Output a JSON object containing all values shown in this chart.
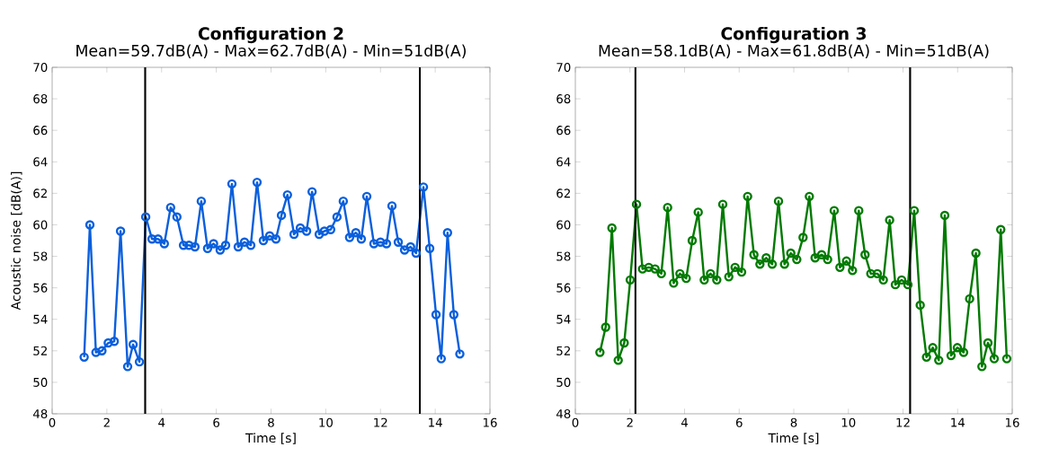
{
  "chart_data": [
    {
      "type": "line",
      "title": "Configuration 2",
      "subtitle": "Mean=59.7dB(A) - Max=62.7dB(A) - Min=51dB(A)",
      "xlabel": "Time [s]",
      "ylabel": "Acoustic noise [dB(A)]",
      "x": [
        1.17,
        1.38,
        1.6,
        1.82,
        2.05,
        2.27,
        2.5,
        2.76,
        2.96,
        3.19,
        3.42,
        3.65,
        3.87,
        4.1,
        4.33,
        4.56,
        4.8,
        5.0,
        5.22,
        5.45,
        5.68,
        5.9,
        6.14,
        6.34,
        6.57,
        6.8,
        7.03,
        7.26,
        7.49,
        7.72,
        7.95,
        8.18,
        8.38,
        8.6,
        8.84,
        9.07,
        9.3,
        9.5,
        9.76,
        9.95,
        10.18,
        10.41,
        10.64,
        10.87,
        11.1,
        11.3,
        11.5,
        11.76,
        12.0,
        12.22,
        12.42,
        12.65,
        12.88,
        13.1,
        13.3,
        13.57,
        13.8,
        14.03,
        14.22,
        14.45,
        14.68,
        14.9
      ],
      "series": [
        {
          "color": "#0a5fdc",
          "values": [
            51.6,
            60.0,
            51.9,
            52.0,
            52.5,
            52.6,
            59.6,
            51.0,
            52.4,
            51.3,
            60.5,
            59.1,
            59.1,
            58.8,
            61.1,
            60.5,
            58.7,
            58.7,
            58.6,
            61.5,
            58.5,
            58.8,
            58.4,
            58.7,
            62.6,
            58.6,
            58.9,
            58.7,
            62.7,
            59.0,
            59.3,
            59.1,
            60.6,
            61.9,
            59.4,
            59.8,
            59.6,
            62.1,
            59.4,
            59.6,
            59.7,
            60.5,
            61.5,
            59.2,
            59.5,
            59.1,
            61.8,
            58.8,
            58.9,
            58.8,
            61.2,
            58.9,
            58.4,
            58.6,
            58.2,
            62.4,
            58.5,
            54.3,
            51.5,
            59.5,
            54.3,
            51.8
          ]
        }
      ],
      "xlim": [
        0,
        16
      ],
      "ylim": [
        48,
        70
      ],
      "xticks": [
        0,
        2,
        4,
        6,
        8,
        10,
        12,
        14,
        16
      ],
      "yticks": [
        48,
        50,
        52,
        54,
        56,
        58,
        60,
        62,
        64,
        66,
        68,
        70
      ],
      "ref_lines": [
        {
          "axis": "x",
          "value": 3.4,
          "color": "#000000"
        },
        {
          "axis": "x",
          "value": 13.44,
          "color": "#000000"
        }
      ],
      "marker": "circle",
      "grid": false
    },
    {
      "type": "line",
      "title": "Configuration 3",
      "subtitle": "Mean=58.1dB(A) - Max=61.8dB(A) - Min=51dB(A)",
      "xlabel": "Time [s]",
      "x": [
        0.9,
        1.11,
        1.34,
        1.57,
        1.79,
        2.01,
        2.24,
        2.46,
        2.69,
        2.92,
        3.15,
        3.38,
        3.6,
        3.83,
        4.06,
        4.28,
        4.5,
        4.72,
        4.95,
        5.18,
        5.4,
        5.62,
        5.85,
        6.09,
        6.31,
        6.54,
        6.76,
        6.99,
        7.21,
        7.44,
        7.66,
        7.89,
        8.11,
        8.34,
        8.57,
        8.78,
        9.02,
        9.24,
        9.48,
        9.69,
        9.93,
        10.15,
        10.38,
        10.61,
        10.82,
        11.06,
        11.28,
        11.51,
        11.72,
        11.95,
        12.18,
        12.41,
        12.63,
        12.86,
        13.09,
        13.31,
        13.53,
        13.76,
        13.99,
        14.22,
        14.44,
        14.67,
        14.89,
        15.11,
        15.34,
        15.58,
        15.8
      ],
      "series": [
        {
          "color": "#007a00",
          "values": [
            51.9,
            53.5,
            59.8,
            51.4,
            52.5,
            56.5,
            61.3,
            57.2,
            57.3,
            57.2,
            56.9,
            61.1,
            56.3,
            56.9,
            56.6,
            59.0,
            60.8,
            56.5,
            56.9,
            56.5,
            61.3,
            56.7,
            57.3,
            57.0,
            61.8,
            58.1,
            57.5,
            57.9,
            57.5,
            61.5,
            57.5,
            58.2,
            57.8,
            59.2,
            61.8,
            57.9,
            58.1,
            57.8,
            60.9,
            57.3,
            57.7,
            57.1,
            60.9,
            58.1,
            56.9,
            56.9,
            56.5,
            60.3,
            56.2,
            56.5,
            56.2,
            60.9,
            54.9,
            51.6,
            52.2,
            51.4,
            60.6,
            51.7,
            52.2,
            51.9,
            55.3,
            58.2,
            51.0,
            52.5,
            51.5,
            59.7,
            51.5
          ]
        }
      ],
      "xlim": [
        0,
        16
      ],
      "ylim": [
        48,
        70
      ],
      "xticks": [
        0,
        2,
        4,
        6,
        8,
        10,
        12,
        14,
        16
      ],
      "yticks": [
        48,
        50,
        52,
        54,
        56,
        58,
        60,
        62,
        64,
        66,
        68,
        70
      ],
      "ref_lines": [
        {
          "axis": "x",
          "value": 2.2,
          "color": "#000000"
        },
        {
          "axis": "x",
          "value": 12.26,
          "color": "#000000"
        }
      ],
      "marker": "circle",
      "grid": false
    }
  ]
}
